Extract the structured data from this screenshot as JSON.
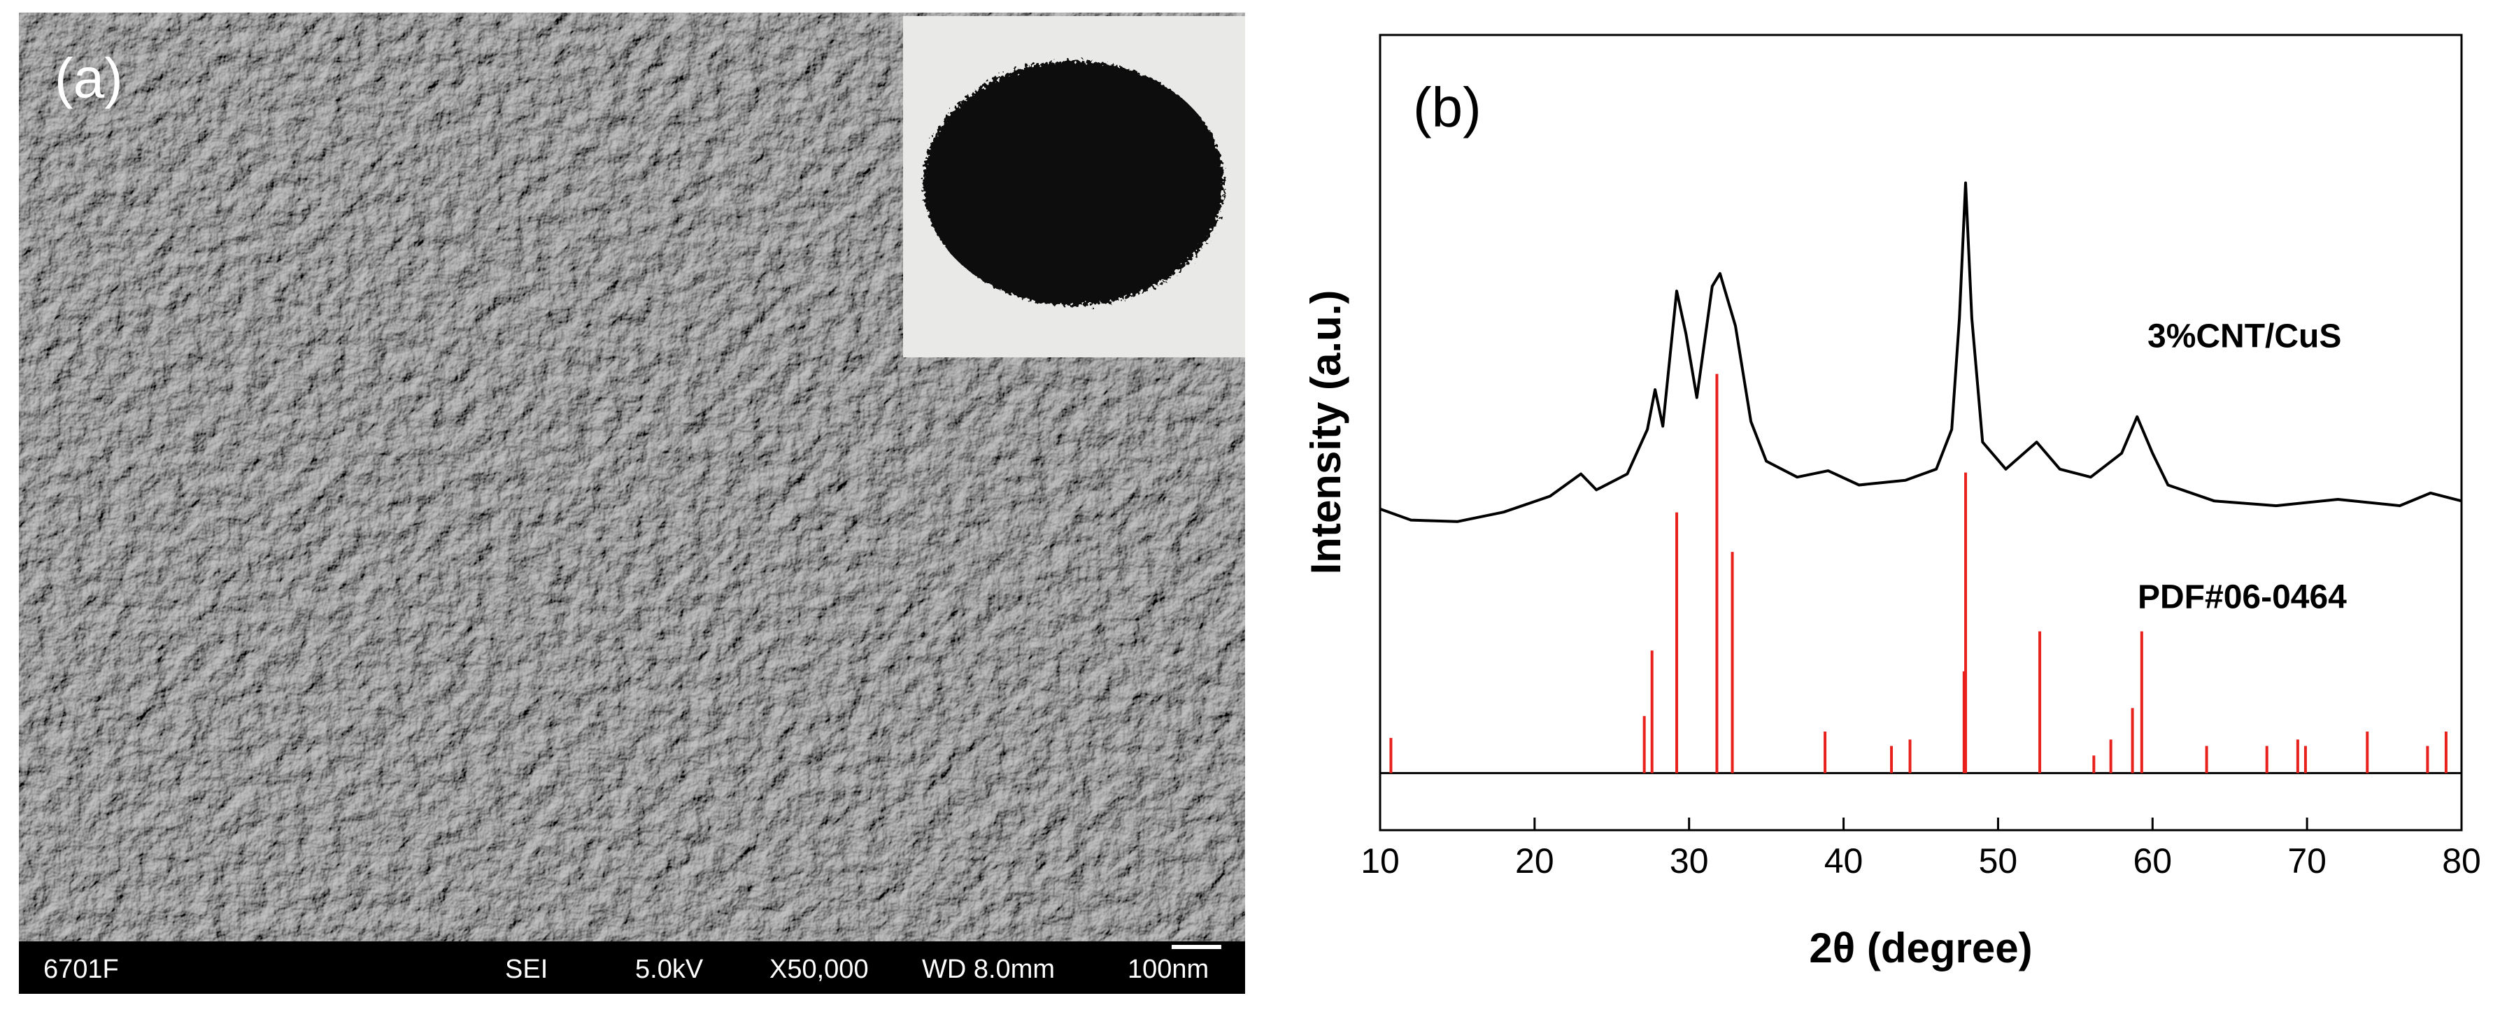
{
  "panel_a": {
    "label": "(a)",
    "info_bar": [
      "6701F",
      "SEI",
      "5.0kV",
      "X50,000",
      "WD 8.0mm",
      "100nm"
    ]
  },
  "chart_data": {
    "type": "line",
    "label": "(b)",
    "xlabel": "2θ (degree)",
    "ylabel": "Intensity (a.u.)",
    "xlim": [
      10,
      80
    ],
    "xticks": [
      10,
      20,
      30,
      40,
      50,
      60,
      70,
      80
    ],
    "ylim": [
      0,
      100
    ],
    "y2lim": [
      -14.3,
      184.9
    ],
    "series": [
      {
        "name": "3%CNT/CuS",
        "color": "#000000",
        "x": [
          10,
          12,
          15,
          18,
          21,
          23,
          24,
          26,
          27.3,
          27.8,
          28.3,
          29.2,
          29.8,
          30.5,
          31.5,
          32,
          33,
          34,
          35,
          37,
          39,
          41,
          44,
          46,
          47,
          47.5,
          47.9,
          48.3,
          49,
          50.5,
          52.5,
          54,
          56,
          58,
          59,
          60,
          61,
          64,
          68,
          72,
          76,
          78,
          80
        ],
        "values": [
          40.4,
          39,
          38.8,
          40,
          42,
          44.8,
          42.8,
          44.8,
          50.4,
          55.4,
          50.8,
          67.8,
          62.4,
          54.4,
          68.4,
          70,
          63.4,
          51.4,
          46.4,
          44.4,
          45.2,
          43.4,
          44,
          45.4,
          50.4,
          64.4,
          81.4,
          64.4,
          48.8,
          45.4,
          48.8,
          45.4,
          44.4,
          47.4,
          52,
          47.4,
          43.4,
          41.4,
          40.8,
          41.6,
          40.8,
          42.4,
          41.4
        ]
      },
      {
        "name": "PDF#06-0464",
        "color": "#e8211d",
        "axis": "y2",
        "x": [
          10.7,
          27.1,
          27.6,
          29.2,
          31.8,
          32.8,
          38.8,
          43.1,
          44.3,
          47.8,
          47.9,
          52.7,
          56.2,
          57.3,
          58.7,
          59.3,
          63.5,
          67.4,
          69.4,
          69.9,
          73.9,
          77.8,
          79.0
        ],
        "values": [
          8.8,
          14.3,
          30.7,
          65.3,
          100,
          55.4,
          10.4,
          6.8,
          8.4,
          25.5,
          75.3,
          35.5,
          4.4,
          8.4,
          16.3,
          35.5,
          6.8,
          6.8,
          8.4,
          6.8,
          10.4,
          6.8,
          10.4
        ]
      }
    ]
  }
}
